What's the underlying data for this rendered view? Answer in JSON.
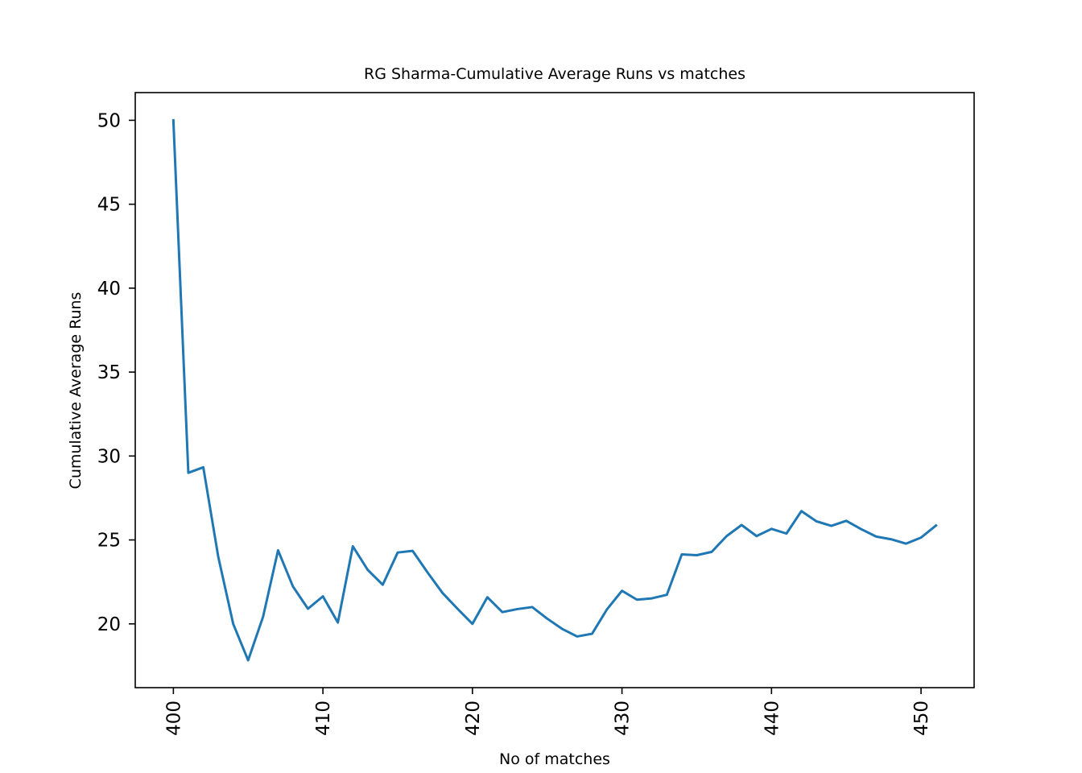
{
  "chart_data": {
    "type": "line",
    "title": "RG Sharma-Cumulative Average Runs vs matches",
    "xlabel": "No of matches",
    "ylabel": "Cumulative Average Runs",
    "xlim": [
      397.45,
      453.55
    ],
    "ylim": [
      16.2,
      51.65
    ],
    "xticks": [
      400,
      410,
      420,
      430,
      440,
      450
    ],
    "yticks": [
      20,
      25,
      30,
      35,
      40,
      45,
      50
    ],
    "grid": false,
    "line_color": "#1f77b4",
    "series": [
      {
        "x": [
          400,
          401,
          402,
          403,
          404,
          405,
          406,
          407,
          408,
          409,
          410,
          411,
          412,
          413,
          414,
          415,
          416,
          417,
          418,
          419,
          420,
          421,
          422,
          423,
          424,
          425,
          426,
          427,
          428,
          429,
          430,
          431,
          432,
          433,
          434,
          435,
          436,
          437,
          438,
          439,
          440,
          441,
          442,
          443,
          444,
          445,
          446,
          447,
          448,
          449,
          450,
          451
        ],
        "values": [
          50.0,
          29.0,
          29.33,
          24.0,
          20.0,
          17.83,
          20.43,
          24.38,
          22.22,
          20.9,
          21.64,
          20.08,
          24.62,
          23.21,
          22.33,
          24.25,
          24.35,
          23.06,
          21.84,
          20.9,
          20.0,
          21.59,
          20.7,
          20.88,
          21.0,
          20.31,
          19.7,
          19.25,
          19.41,
          20.87,
          21.97,
          21.44,
          21.52,
          21.73,
          24.14,
          24.09,
          24.29,
          25.23,
          25.89,
          25.23,
          25.66,
          25.38,
          26.72,
          26.11,
          25.84,
          26.14,
          25.64,
          25.2,
          25.04,
          24.78,
          25.14,
          25.86
        ]
      }
    ]
  }
}
